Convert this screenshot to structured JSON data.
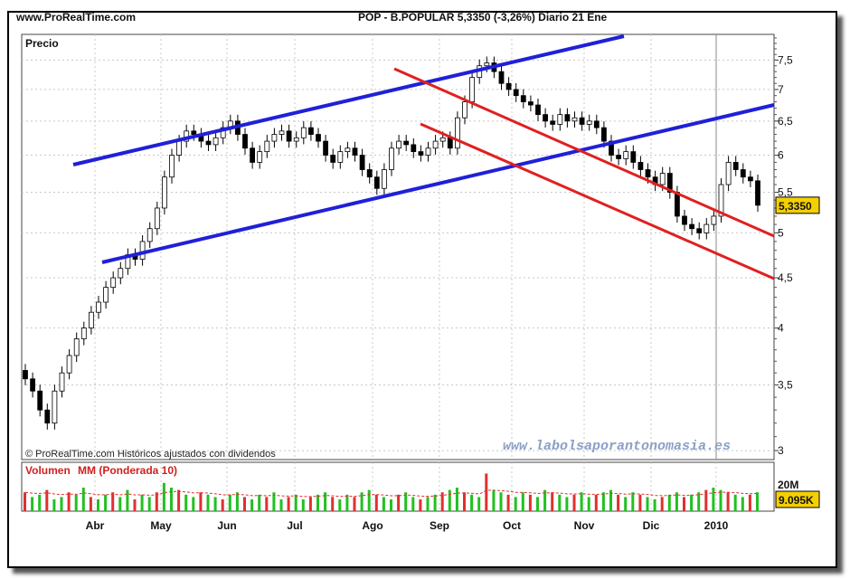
{
  "header": {
    "site": "www.ProRealTime.com",
    "title": "POP - B.POPULAR    5,3350 (-3,26%)   Diario  21 Ene"
  },
  "chart_data": [
    {
      "type": "candlestick",
      "ylabel": "Precio",
      "ylim": [
        2.95,
        8.0
      ],
      "scale": "log",
      "y_ticks": [
        "7,5",
        "7",
        "6,5",
        "6",
        "5,5",
        "5",
        "4,5",
        "4",
        "3,5",
        "3"
      ],
      "y_tick_values": [
        7.5,
        7.0,
        6.5,
        6.0,
        5.5,
        5.0,
        4.5,
        4.0,
        3.5,
        3.0
      ],
      "x_ticks": [
        "Abr",
        "May",
        "Jun",
        "Jul",
        "Ago",
        "Sep",
        "Oct",
        "Nov",
        "Dic",
        "2010"
      ],
      "last_price_label": "5,3350",
      "close": [
        3.55,
        3.45,
        3.3,
        3.2,
        3.45,
        3.6,
        3.75,
        3.9,
        4.0,
        4.15,
        4.25,
        4.4,
        4.5,
        4.6,
        4.75,
        4.7,
        4.9,
        5.05,
        5.3,
        5.7,
        6.0,
        6.2,
        6.35,
        6.3,
        6.2,
        6.15,
        6.25,
        6.4,
        6.5,
        6.3,
        6.1,
        5.9,
        6.05,
        6.2,
        6.3,
        6.35,
        6.2,
        6.25,
        6.4,
        6.3,
        6.2,
        6.0,
        5.9,
        6.05,
        6.1,
        6.0,
        5.8,
        5.7,
        5.55,
        5.8,
        6.1,
        6.2,
        6.15,
        6.05,
        6.0,
        6.1,
        6.2,
        6.25,
        6.1,
        6.55,
        6.8,
        7.2,
        7.4,
        7.45,
        7.3,
        7.1,
        7.0,
        6.9,
        6.8,
        6.75,
        6.6,
        6.5,
        6.45,
        6.6,
        6.5,
        6.55,
        6.45,
        6.5,
        6.4,
        6.2,
        6.0,
        5.95,
        6.05,
        5.9,
        5.8,
        5.7,
        5.6,
        5.75,
        5.5,
        5.2,
        5.1,
        5.05,
        5.0,
        5.1,
        5.2,
        5.6,
        5.9,
        5.8,
        5.7,
        5.65,
        5.335
      ],
      "annotations": [
        "© ProRealTime.com Históricos ajustados con dividendos",
        "www.labolsaporantonomasia.es"
      ],
      "trendlines": [
        "blue-upper-channel",
        "blue-lower-channel",
        "red-upper-channel",
        "red-lower-channel"
      ]
    },
    {
      "type": "bar",
      "title": "Volumen",
      "series": [
        {
          "name": "MM (Ponderada 10)",
          "values": []
        }
      ],
      "y_ticks": [
        "20M"
      ],
      "last_value_label": "9.095K",
      "volume": [
        8,
        6,
        7,
        9,
        5,
        6,
        8,
        7,
        10,
        6,
        5,
        7,
        8,
        6,
        9,
        5,
        7,
        6,
        8,
        12,
        10,
        9,
        7,
        6,
        8,
        7,
        6,
        5,
        7,
        8,
        6,
        5,
        7,
        6,
        8,
        5,
        6,
        7,
        5,
        6,
        7,
        8,
        6,
        5,
        7,
        6,
        8,
        9,
        7,
        6,
        5,
        7,
        8,
        6,
        5,
        6,
        7,
        8,
        9,
        10,
        8,
        7,
        6,
        16,
        9,
        8,
        7,
        6,
        8,
        7,
        6,
        9,
        8,
        7,
        6,
        7,
        8,
        6,
        7,
        8,
        9,
        7,
        6,
        8,
        7,
        6,
        5,
        6,
        7,
        8,
        6,
        7,
        8,
        9,
        10,
        9,
        8,
        7,
        6,
        7,
        8
      ]
    }
  ]
}
